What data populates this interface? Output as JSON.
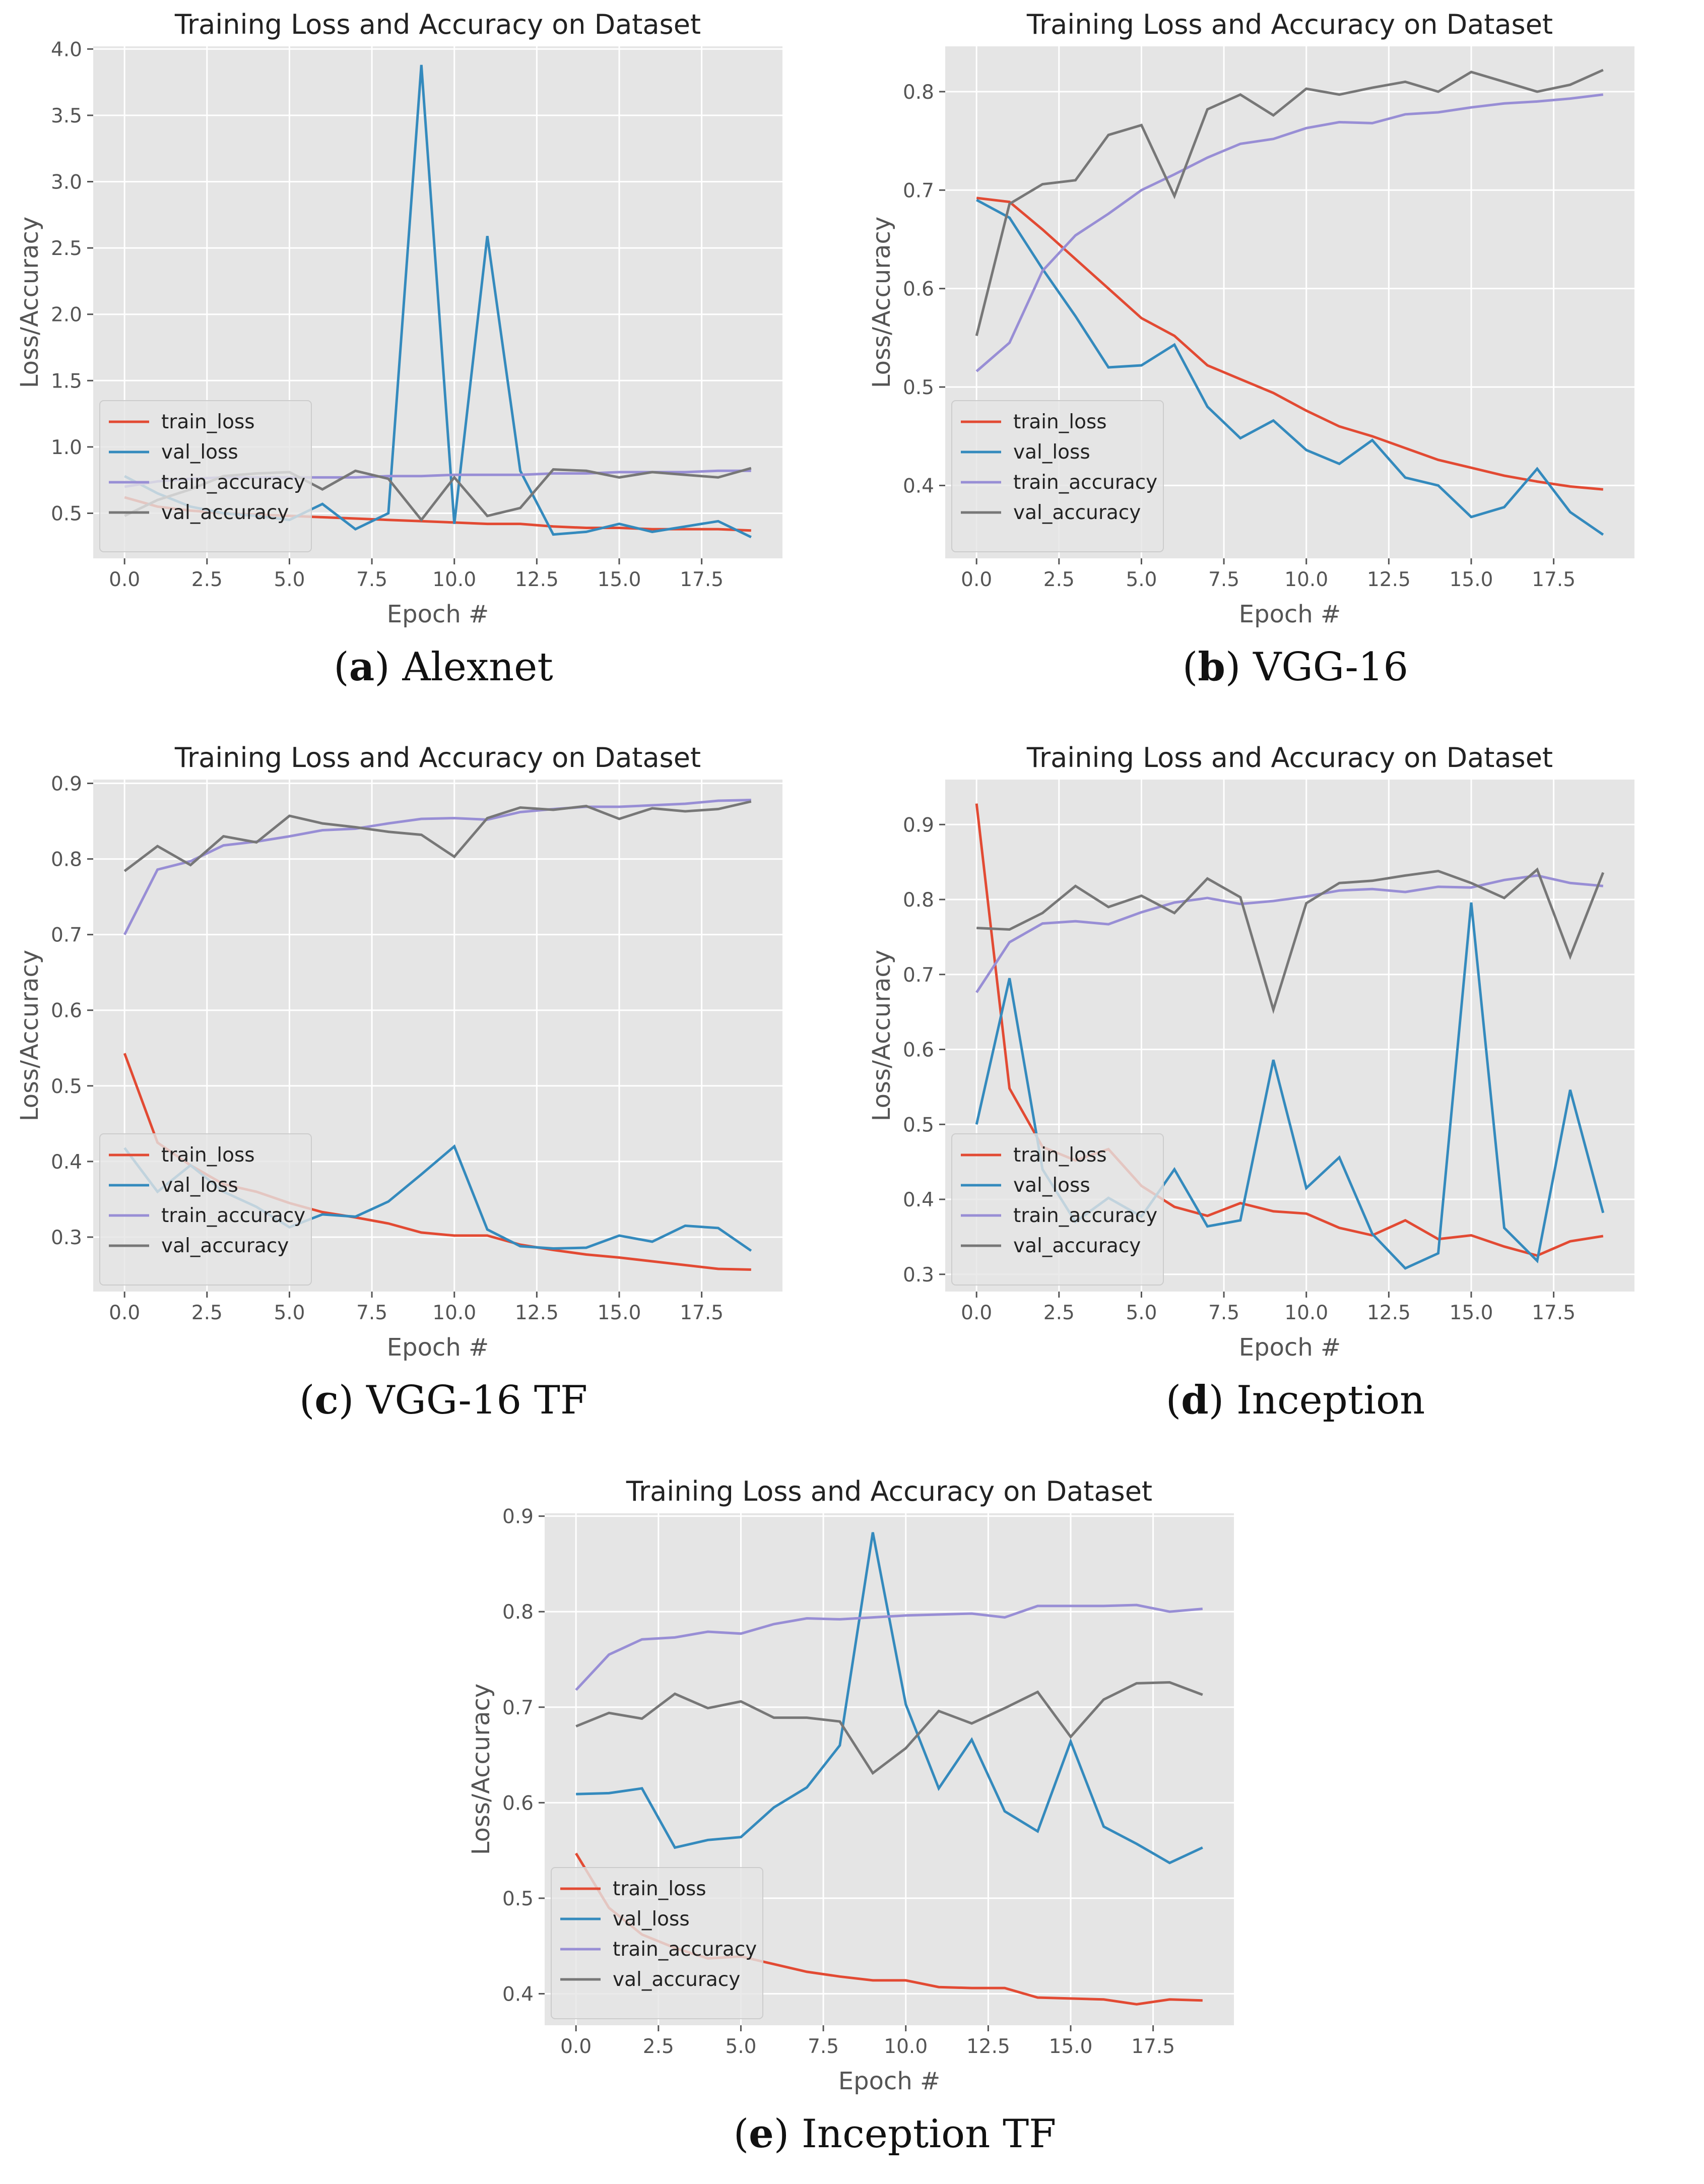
{
  "colors": {
    "train_loss": "#e24a33",
    "val_loss": "#348abd",
    "train_accuracy": "#988ed5",
    "val_accuracy": "#777777",
    "plot_bg": "#e5e5e5",
    "grid": "#ffffff"
  },
  "chart_data": [
    {
      "id": "a",
      "type": "line",
      "title": "Training Loss and Accuracy on Dataset",
      "xlabel": "Epoch #",
      "ylabel": "Loss/Accuracy",
      "caption_letter": "a",
      "caption_text": " Alexnet",
      "xlim": [
        -0.95,
        19.95
      ],
      "ylim": [
        0.16,
        4.02
      ],
      "xticks": [
        0,
        2.5,
        5,
        7.5,
        10,
        12.5,
        15,
        17.5
      ],
      "xtick_labels": [
        "0.0",
        "2.5",
        "5.0",
        "7.5",
        "10.0",
        "12.5",
        "15.0",
        "17.5"
      ],
      "yticks": [
        0.5,
        1.0,
        1.5,
        2.0,
        2.5,
        3.0,
        3.5,
        4.0
      ],
      "ytick_labels": [
        "0.5",
        "1.0",
        "1.5",
        "2.0",
        "2.5",
        "3.0",
        "3.5",
        "4.0"
      ],
      "legend": "lower left",
      "x": [
        0,
        1,
        2,
        3,
        4,
        5,
        6,
        7,
        8,
        9,
        10,
        11,
        12,
        13,
        14,
        15,
        16,
        17,
        18,
        19
      ],
      "series": [
        {
          "name": "train_loss",
          "values": [
            0.62,
            0.55,
            0.52,
            0.5,
            0.49,
            0.48,
            0.47,
            0.46,
            0.45,
            0.44,
            0.43,
            0.42,
            0.42,
            0.4,
            0.39,
            0.39,
            0.38,
            0.38,
            0.38,
            0.37
          ]
        },
        {
          "name": "val_loss",
          "values": [
            0.78,
            0.65,
            0.55,
            0.5,
            0.48,
            0.45,
            0.57,
            0.38,
            0.5,
            3.88,
            0.42,
            2.59,
            0.82,
            0.34,
            0.36,
            0.42,
            0.36,
            0.4,
            0.44,
            0.32
          ]
        },
        {
          "name": "train_accuracy",
          "values": [
            0.7,
            0.74,
            0.76,
            0.77,
            0.77,
            0.77,
            0.77,
            0.77,
            0.78,
            0.78,
            0.79,
            0.79,
            0.79,
            0.8,
            0.8,
            0.81,
            0.81,
            0.81,
            0.82,
            0.82
          ]
        },
        {
          "name": "val_accuracy",
          "values": [
            0.48,
            0.6,
            0.68,
            0.78,
            0.8,
            0.81,
            0.68,
            0.82,
            0.76,
            0.45,
            0.77,
            0.48,
            0.54,
            0.83,
            0.82,
            0.77,
            0.81,
            0.79,
            0.77,
            0.84
          ]
        }
      ]
    },
    {
      "id": "b",
      "type": "line",
      "title": "Training Loss and Accuracy on Dataset",
      "xlabel": "Epoch #",
      "ylabel": "Loss/Accuracy",
      "caption_letter": "b",
      "caption_text": " VGG-16",
      "xlim": [
        -0.95,
        19.95
      ],
      "ylim": [
        0.326,
        0.846
      ],
      "xticks": [
        0,
        2.5,
        5,
        7.5,
        10,
        12.5,
        15,
        17.5
      ],
      "xtick_labels": [
        "0.0",
        "2.5",
        "5.0",
        "7.5",
        "10.0",
        "12.5",
        "15.0",
        "17.5"
      ],
      "yticks": [
        0.4,
        0.5,
        0.6,
        0.7,
        0.8
      ],
      "ytick_labels": [
        "0.4",
        "0.5",
        "0.6",
        "0.7",
        "0.8"
      ],
      "legend": "lower left",
      "x": [
        0,
        1,
        2,
        3,
        4,
        5,
        6,
        7,
        8,
        9,
        10,
        11,
        12,
        13,
        14,
        15,
        16,
        17,
        18,
        19
      ],
      "series": [
        {
          "name": "train_loss",
          "values": [
            0.692,
            0.688,
            0.66,
            0.63,
            0.6,
            0.57,
            0.552,
            0.522,
            0.508,
            0.494,
            0.476,
            0.46,
            0.45,
            0.438,
            0.426,
            0.418,
            0.41,
            0.404,
            0.399,
            0.396
          ]
        },
        {
          "name": "val_loss",
          "values": [
            0.69,
            0.672,
            0.62,
            0.572,
            0.52,
            0.522,
            0.543,
            0.48,
            0.448,
            0.466,
            0.436,
            0.422,
            0.446,
            0.408,
            0.4,
            0.368,
            0.378,
            0.417,
            0.373,
            0.35
          ]
        },
        {
          "name": "train_accuracy",
          "values": [
            0.516,
            0.545,
            0.618,
            0.654,
            0.676,
            0.7,
            0.716,
            0.733,
            0.747,
            0.752,
            0.763,
            0.769,
            0.768,
            0.777,
            0.779,
            0.784,
            0.788,
            0.79,
            0.793,
            0.797
          ]
        },
        {
          "name": "val_accuracy",
          "values": [
            0.552,
            0.686,
            0.706,
            0.71,
            0.756,
            0.766,
            0.694,
            0.782,
            0.797,
            0.776,
            0.803,
            0.797,
            0.804,
            0.81,
            0.8,
            0.82,
            0.81,
            0.8,
            0.807,
            0.822
          ]
        }
      ]
    },
    {
      "id": "c",
      "type": "line",
      "title": "Training Loss and Accuracy on Dataset",
      "xlabel": "Epoch #",
      "ylabel": "Loss/Accuracy",
      "caption_letter": "c",
      "caption_text": " VGG-16 TF",
      "xlim": [
        -0.95,
        19.95
      ],
      "ylim": [
        0.228,
        0.905
      ],
      "xticks": [
        0,
        2.5,
        5,
        7.5,
        10,
        12.5,
        15,
        17.5
      ],
      "xtick_labels": [
        "0.0",
        "2.5",
        "5.0",
        "7.5",
        "10.0",
        "12.5",
        "15.0",
        "17.5"
      ],
      "yticks": [
        0.3,
        0.4,
        0.5,
        0.6,
        0.7,
        0.8,
        0.9
      ],
      "ytick_labels": [
        "0.3",
        "0.4",
        "0.5",
        "0.6",
        "0.7",
        "0.8",
        "0.9"
      ],
      "legend": "lower left",
      "x": [
        0,
        1,
        2,
        3,
        4,
        5,
        6,
        7,
        8,
        9,
        10,
        11,
        12,
        13,
        14,
        15,
        16,
        17,
        18,
        19
      ],
      "series": [
        {
          "name": "train_loss",
          "values": [
            0.543,
            0.425,
            0.395,
            0.37,
            0.36,
            0.345,
            0.333,
            0.326,
            0.318,
            0.306,
            0.302,
            0.302,
            0.29,
            0.283,
            0.277,
            0.273,
            0.268,
            0.263,
            0.258,
            0.257
          ]
        },
        {
          "name": "val_loss",
          "values": [
            0.418,
            0.36,
            0.395,
            0.36,
            0.34,
            0.313,
            0.33,
            0.327,
            0.347,
            0.383,
            0.42,
            0.31,
            0.288,
            0.285,
            0.286,
            0.302,
            0.294,
            0.315,
            0.312,
            0.282
          ]
        },
        {
          "name": "train_accuracy",
          "values": [
            0.7,
            0.786,
            0.797,
            0.818,
            0.823,
            0.83,
            0.838,
            0.84,
            0.847,
            0.853,
            0.854,
            0.852,
            0.862,
            0.866,
            0.869,
            0.869,
            0.871,
            0.873,
            0.877,
            0.878
          ]
        },
        {
          "name": "val_accuracy",
          "values": [
            0.784,
            0.817,
            0.792,
            0.83,
            0.822,
            0.857,
            0.847,
            0.842,
            0.836,
            0.832,
            0.803,
            0.854,
            0.868,
            0.865,
            0.87,
            0.853,
            0.867,
            0.863,
            0.866,
            0.876
          ]
        }
      ]
    },
    {
      "id": "d",
      "type": "line",
      "title": "Training Loss and Accuracy on Dataset",
      "xlabel": "Epoch #",
      "ylabel": "Loss/Accuracy",
      "caption_letter": "d",
      "caption_text": " Inception",
      "xlim": [
        -0.95,
        19.95
      ],
      "ylim": [
        0.277,
        0.96
      ],
      "xticks": [
        0,
        2.5,
        5,
        7.5,
        10,
        12.5,
        15,
        17.5
      ],
      "xtick_labels": [
        "0.0",
        "2.5",
        "5.0",
        "7.5",
        "10.0",
        "12.5",
        "15.0",
        "17.5"
      ],
      "yticks": [
        0.3,
        0.4,
        0.5,
        0.6,
        0.7,
        0.8,
        0.9
      ],
      "ytick_labels": [
        "0.3",
        "0.4",
        "0.5",
        "0.6",
        "0.7",
        "0.8",
        "0.9"
      ],
      "legend": "lower left",
      "x": [
        0,
        1,
        2,
        3,
        4,
        5,
        6,
        7,
        8,
        9,
        10,
        11,
        12,
        13,
        14,
        15,
        16,
        17,
        18,
        19
      ],
      "series": [
        {
          "name": "train_loss",
          "values": [
            0.928,
            0.548,
            0.47,
            0.452,
            0.467,
            0.418,
            0.39,
            0.378,
            0.395,
            0.384,
            0.381,
            0.362,
            0.352,
            0.372,
            0.347,
            0.352,
            0.337,
            0.325,
            0.344,
            0.351
          ]
        },
        {
          "name": "val_loss",
          "values": [
            0.5,
            0.695,
            0.44,
            0.37,
            0.402,
            0.377,
            0.44,
            0.364,
            0.372,
            0.586,
            0.415,
            0.456,
            0.354,
            0.308,
            0.328,
            0.796,
            0.362,
            0.318,
            0.546,
            0.382
          ]
        },
        {
          "name": "train_accuracy",
          "values": [
            0.676,
            0.743,
            0.768,
            0.771,
            0.767,
            0.783,
            0.796,
            0.802,
            0.794,
            0.798,
            0.804,
            0.812,
            0.814,
            0.81,
            0.817,
            0.816,
            0.826,
            0.832,
            0.822,
            0.818
          ]
        },
        {
          "name": "val_accuracy",
          "values": [
            0.762,
            0.76,
            0.782,
            0.818,
            0.79,
            0.805,
            0.782,
            0.828,
            0.803,
            0.653,
            0.795,
            0.822,
            0.825,
            0.832,
            0.838,
            0.822,
            0.802,
            0.84,
            0.724,
            0.836
          ]
        }
      ]
    },
    {
      "id": "e",
      "type": "line",
      "title": "Training Loss and Accuracy on Dataset",
      "xlabel": "Epoch #",
      "ylabel": "Loss/Accuracy",
      "caption_letter": "e",
      "caption_text": " Inception TF",
      "xlim": [
        -0.95,
        19.95
      ],
      "ylim": [
        0.367,
        0.903
      ],
      "xticks": [
        0,
        2.5,
        5,
        7.5,
        10,
        12.5,
        15,
        17.5
      ],
      "xtick_labels": [
        "0.0",
        "2.5",
        "5.0",
        "7.5",
        "10.0",
        "12.5",
        "15.0",
        "17.5"
      ],
      "yticks": [
        0.4,
        0.5,
        0.6,
        0.7,
        0.8,
        0.9
      ],
      "ytick_labels": [
        "0.4",
        "0.5",
        "0.6",
        "0.7",
        "0.8",
        "0.9"
      ],
      "legend": "lower left",
      "x": [
        0,
        1,
        2,
        3,
        4,
        5,
        6,
        7,
        8,
        9,
        10,
        11,
        12,
        13,
        14,
        15,
        16,
        17,
        18,
        19
      ],
      "series": [
        {
          "name": "train_loss",
          "values": [
            0.547,
            0.49,
            0.462,
            0.448,
            0.437,
            0.439,
            0.431,
            0.423,
            0.418,
            0.414,
            0.414,
            0.407,
            0.406,
            0.406,
            0.396,
            0.395,
            0.394,
            0.389,
            0.394,
            0.393
          ]
        },
        {
          "name": "val_loss",
          "values": [
            0.609,
            0.61,
            0.615,
            0.553,
            0.561,
            0.564,
            0.595,
            0.616,
            0.66,
            0.883,
            0.703,
            0.615,
            0.666,
            0.591,
            0.57,
            0.664,
            0.575,
            0.557,
            0.537,
            0.553
          ]
        },
        {
          "name": "train_accuracy",
          "values": [
            0.718,
            0.755,
            0.771,
            0.773,
            0.779,
            0.777,
            0.787,
            0.793,
            0.792,
            0.794,
            0.796,
            0.797,
            0.798,
            0.794,
            0.806,
            0.806,
            0.806,
            0.807,
            0.8,
            0.803
          ]
        },
        {
          "name": "val_accuracy",
          "values": [
            0.68,
            0.694,
            0.688,
            0.714,
            0.699,
            0.706,
            0.689,
            0.689,
            0.685,
            0.631,
            0.657,
            0.696,
            0.683,
            0.699,
            0.716,
            0.669,
            0.708,
            0.725,
            0.726,
            0.713
          ]
        }
      ]
    }
  ]
}
